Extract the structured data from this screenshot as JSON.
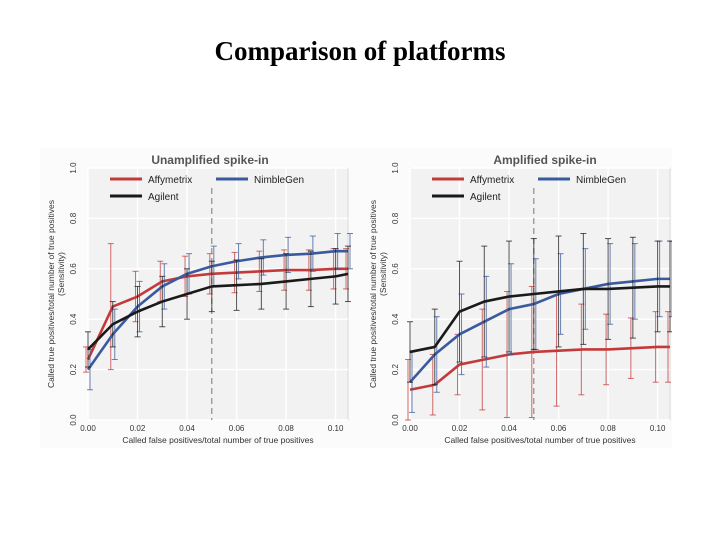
{
  "slide": {
    "title": "Comparison of platforms"
  },
  "shared_axis": {
    "xlabel": "Called false positives/total number of true positives",
    "ylabel_line1": "Called true positives/total number of true positives",
    "ylabel_line2": "(Sensitivity)",
    "x_ticks": [
      "0.00",
      "0.02",
      "0.04",
      "0.06",
      "0.08",
      "0.10"
    ],
    "y_ticks": [
      "0.0",
      "0.2",
      "0.4",
      "0.6",
      "0.8",
      "1.0"
    ]
  },
  "colors": {
    "affymetrix": "#c43a3a",
    "nimblegen": "#3b5a9d",
    "agilent": "#1a1a1a",
    "title": "#555555"
  },
  "chart_data": [
    {
      "type": "line",
      "title": "Unamplified spike-in",
      "xlabel": "Called false positives/total number of true positives",
      "ylabel": "Called true positives/total number of true positives (Sensitivity)",
      "xlim": [
        0,
        0.105
      ],
      "ylim": [
        0,
        1.0
      ],
      "grid": true,
      "legend": "top",
      "reference_line_x": 0.05,
      "series": [
        {
          "name": "Affymetrix",
          "color": "#c43a3a",
          "x": [
            0.0,
            0.01,
            0.02,
            0.03,
            0.04,
            0.05,
            0.06,
            0.07,
            0.08,
            0.09,
            0.1,
            0.105
          ],
          "y": [
            0.24,
            0.45,
            0.49,
            0.55,
            0.57,
            0.58,
            0.585,
            0.59,
            0.595,
            0.595,
            0.6,
            0.6
          ],
          "err": [
            0.05,
            0.25,
            0.1,
            0.08,
            0.08,
            0.08,
            0.08,
            0.08,
            0.08,
            0.08,
            0.08,
            0.08
          ]
        },
        {
          "name": "NimbleGen",
          "color": "#3b5a9d",
          "x": [
            0.0,
            0.01,
            0.02,
            0.03,
            0.04,
            0.05,
            0.06,
            0.07,
            0.08,
            0.09,
            0.1,
            0.105
          ],
          "y": [
            0.2,
            0.34,
            0.45,
            0.53,
            0.58,
            0.61,
            0.63,
            0.645,
            0.655,
            0.66,
            0.67,
            0.67
          ],
          "err": [
            0.08,
            0.1,
            0.1,
            0.09,
            0.08,
            0.08,
            0.07,
            0.07,
            0.07,
            0.07,
            0.07,
            0.07
          ]
        },
        {
          "name": "Agilent",
          "color": "#1a1a1a",
          "x": [
            0.0,
            0.01,
            0.02,
            0.03,
            0.04,
            0.05,
            0.06,
            0.07,
            0.08,
            0.09,
            0.1,
            0.105
          ],
          "y": [
            0.28,
            0.38,
            0.43,
            0.47,
            0.5,
            0.53,
            0.535,
            0.54,
            0.55,
            0.56,
            0.57,
            0.58
          ],
          "err": [
            0.07,
            0.09,
            0.1,
            0.1,
            0.1,
            0.1,
            0.1,
            0.1,
            0.11,
            0.11,
            0.11,
            0.11
          ]
        }
      ]
    },
    {
      "type": "line",
      "title": "Amplified spike-in",
      "xlabel": "Called false positives/total number of true positives",
      "ylabel": "Called true positives/total number of true positives (Sensitivity)",
      "xlim": [
        0,
        0.105
      ],
      "ylim": [
        0,
        1.0
      ],
      "grid": true,
      "legend": "top",
      "reference_line_x": 0.05,
      "series": [
        {
          "name": "Affymetrix",
          "color": "#c43a3a",
          "x": [
            0.0,
            0.01,
            0.02,
            0.03,
            0.04,
            0.05,
            0.06,
            0.07,
            0.08,
            0.09,
            0.1,
            0.105
          ],
          "y": [
            0.12,
            0.14,
            0.22,
            0.24,
            0.26,
            0.27,
            0.275,
            0.28,
            0.28,
            0.285,
            0.29,
            0.29
          ],
          "err": [
            0.12,
            0.12,
            0.12,
            0.2,
            0.25,
            0.26,
            0.22,
            0.18,
            0.14,
            0.12,
            0.14,
            0.14
          ]
        },
        {
          "name": "NimbleGen",
          "color": "#3b5a9d",
          "x": [
            0.0,
            0.01,
            0.02,
            0.03,
            0.04,
            0.05,
            0.06,
            0.07,
            0.08,
            0.09,
            0.1,
            0.105
          ],
          "y": [
            0.15,
            0.26,
            0.34,
            0.39,
            0.44,
            0.46,
            0.5,
            0.52,
            0.54,
            0.55,
            0.56,
            0.56
          ],
          "err": [
            0.12,
            0.15,
            0.16,
            0.18,
            0.18,
            0.18,
            0.16,
            0.16,
            0.16,
            0.15,
            0.15,
            0.15
          ]
        },
        {
          "name": "Agilent",
          "color": "#1a1a1a",
          "x": [
            0.0,
            0.01,
            0.02,
            0.03,
            0.04,
            0.05,
            0.06,
            0.07,
            0.08,
            0.09,
            0.1,
            0.105
          ],
          "y": [
            0.27,
            0.29,
            0.43,
            0.47,
            0.49,
            0.5,
            0.51,
            0.52,
            0.52,
            0.525,
            0.53,
            0.53
          ],
          "err": [
            0.12,
            0.15,
            0.2,
            0.22,
            0.22,
            0.22,
            0.22,
            0.22,
            0.2,
            0.2,
            0.18,
            0.18
          ]
        }
      ]
    }
  ]
}
